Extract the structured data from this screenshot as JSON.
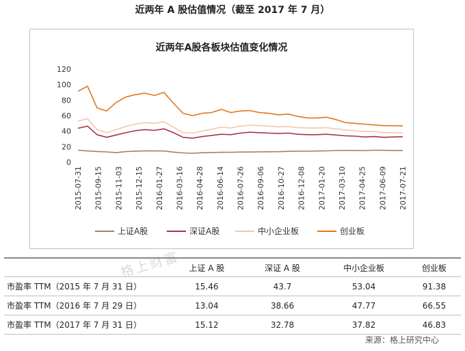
{
  "page_title": "近两年 A 股估值情况（截至 2017 年 7 月）",
  "watermark": "格上财富",
  "source": "来源：格上研究中心",
  "chart_data": {
    "type": "line",
    "title": "近两年A股各板块估值变化情况",
    "ylim": [
      0,
      120
    ],
    "yticks": [
      0,
      20,
      40,
      60,
      80,
      100,
      120
    ],
    "x_tick_labels": [
      "2015-07-31",
      "2015-09-15",
      "2015-11-03",
      "2015-12-15",
      "2016-01-27",
      "2016-03-16",
      "2016-04-28",
      "2016-06-14",
      "2016-07-26",
      "2016-09-06",
      "2016-10-27",
      "2016-12-08",
      "2017-01-20",
      "2017-03-10",
      "2017-04-25",
      "2017-06-09",
      "2017-07-21"
    ],
    "legend_position": "bottom",
    "series": [
      {
        "name": "上证A股",
        "color": "#b07a66",
        "values": [
          15.46,
          14.5,
          13.8,
          13.2,
          12.3,
          13.6,
          14.2,
          14.6,
          14.5,
          14.4,
          13.0,
          11.9,
          11.5,
          12.2,
          12.4,
          12.8,
          12.7,
          13.1,
          13.04,
          13.3,
          13.4,
          13.5,
          13.9,
          14.2,
          14.1,
          14.4,
          14.6,
          15.0,
          15.2,
          15.1,
          15.0,
          15.4,
          15.3,
          15.1,
          15.12
        ]
      },
      {
        "name": "深证A股",
        "color": "#a8324a",
        "values": [
          43.7,
          46.5,
          35.5,
          32.0,
          35.0,
          38.0,
          40.5,
          42.0,
          41.0,
          43.0,
          38.0,
          32.0,
          31.0,
          33.0,
          34.5,
          36.0,
          35.5,
          37.5,
          38.66,
          38.0,
          37.5,
          37.0,
          37.5,
          36.0,
          35.5,
          35.5,
          36.0,
          35.0,
          34.0,
          33.5,
          32.5,
          33.0,
          32.0,
          32.5,
          32.78
        ]
      },
      {
        "name": "中小企业板",
        "color": "#f5c8a6",
        "values": [
          53.04,
          56.0,
          42.0,
          38.0,
          42.0,
          46.0,
          49.0,
          51.0,
          50.0,
          52.0,
          45.0,
          38.0,
          37.5,
          40.0,
          42.5,
          45.0,
          44.0,
          46.5,
          47.77,
          47.0,
          46.5,
          45.5,
          46.0,
          44.5,
          44.0,
          44.0,
          44.5,
          43.0,
          41.5,
          40.5,
          39.5,
          39.5,
          38.0,
          38.0,
          37.82
        ]
      },
      {
        "name": "创业板",
        "color": "#e0761c",
        "values": [
          91.38,
          98.0,
          70.0,
          66.0,
          77.0,
          84.0,
          87.0,
          89.0,
          86.0,
          90.0,
          76.0,
          63.0,
          60.0,
          63.0,
          64.0,
          68.0,
          64.0,
          66.0,
          66.55,
          64.0,
          63.0,
          61.0,
          62.0,
          59.0,
          57.0,
          57.0,
          58.0,
          55.0,
          51.0,
          50.0,
          49.0,
          48.0,
          47.0,
          47.0,
          46.83
        ]
      }
    ]
  },
  "table": {
    "headers": [
      "",
      "上证 A 股",
      "深证 A 股",
      "中小企业板",
      "创业板"
    ],
    "rows": [
      {
        "label": "市盈率 TTM（2015 年 7 月 31 日）",
        "values": [
          "15.46",
          "43.7",
          "53.04",
          "91.38"
        ]
      },
      {
        "label": "市盈率 TTM（2016 年 7 月 29 日）",
        "values": [
          "13.04",
          "38.66",
          "47.77",
          "66.55"
        ]
      },
      {
        "label": "市盈率 TTM（2017 年 7 月 31 日）",
        "values": [
          "15.12",
          "32.78",
          "37.82",
          "46.83"
        ]
      }
    ]
  }
}
